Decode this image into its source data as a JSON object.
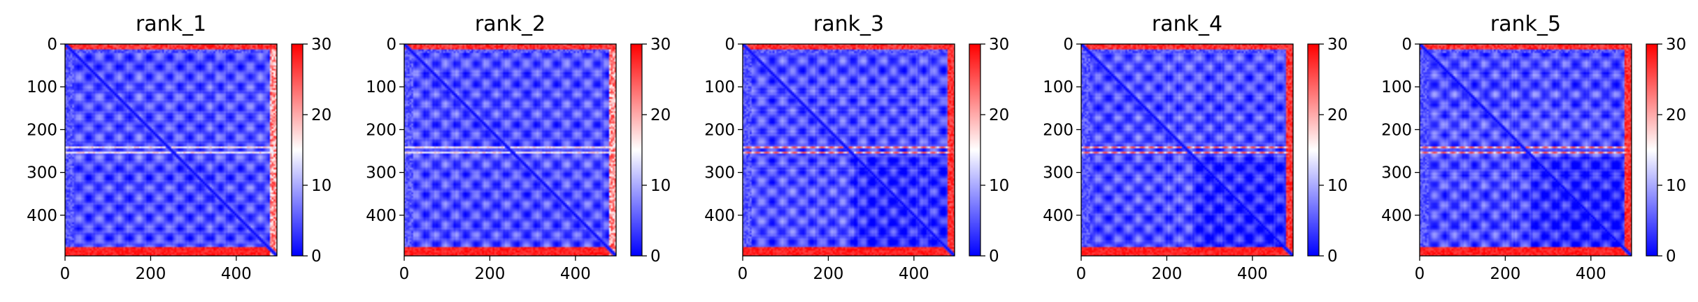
{
  "chart_data": [
    {
      "type": "heatmap",
      "title": "rank_1",
      "xticks": [
        0,
        200,
        400
      ],
      "yticks": [
        0,
        100,
        200,
        300,
        400
      ],
      "colorbar": {
        "ticks": [
          0,
          10,
          20,
          30
        ],
        "range": [
          0,
          30
        ],
        "colormap": "bwr"
      },
      "matrix_size": 495,
      "variant": 1
    },
    {
      "type": "heatmap",
      "title": "rank_2",
      "xticks": [
        0,
        200,
        400
      ],
      "yticks": [
        0,
        100,
        200,
        300,
        400
      ],
      "colorbar": {
        "ticks": [
          0,
          10,
          20,
          30
        ],
        "range": [
          0,
          30
        ],
        "colormap": "bwr"
      },
      "matrix_size": 495,
      "variant": 2
    },
    {
      "type": "heatmap",
      "title": "rank_3",
      "xticks": [
        0,
        200,
        400
      ],
      "yticks": [
        0,
        100,
        200,
        300,
        400
      ],
      "colorbar": {
        "ticks": [
          0,
          10,
          20,
          30
        ],
        "range": [
          0,
          30
        ],
        "colormap": "bwr"
      },
      "matrix_size": 495,
      "variant": 3
    },
    {
      "type": "heatmap",
      "title": "rank_4",
      "xticks": [
        0,
        200,
        400
      ],
      "yticks": [
        0,
        100,
        200,
        300,
        400
      ],
      "colorbar": {
        "ticks": [
          0,
          10,
          20,
          30
        ],
        "range": [
          0,
          30
        ],
        "colormap": "bwr"
      },
      "matrix_size": 495,
      "variant": 4
    },
    {
      "type": "heatmap",
      "title": "rank_5",
      "xticks": [
        0,
        200,
        400
      ],
      "yticks": [
        0,
        100,
        200,
        300,
        400
      ],
      "colorbar": {
        "ticks": [
          0,
          10,
          20,
          30
        ],
        "range": [
          0,
          30
        ],
        "colormap": "bwr"
      },
      "matrix_size": 495,
      "variant": 5
    }
  ]
}
